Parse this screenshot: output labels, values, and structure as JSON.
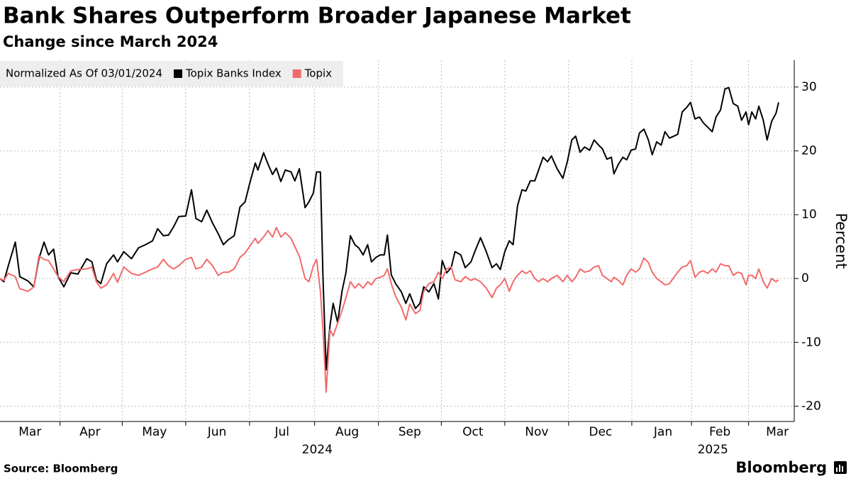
{
  "chart_data": {
    "type": "line",
    "title": "Bank Shares Outperform Broader Japanese Market",
    "subtitle": "Change since March 2024",
    "legend_title": "Normalized As Of 03/01/2024",
    "legend": "top-left",
    "y_label": "Percent",
    "source": "Source: Bloomberg",
    "logo": "Bloomberg",
    "grid": true,
    "xlim": [
      0,
      12.39
    ],
    "xticks": [
      {
        "value": 0.47,
        "label": "Mar"
      },
      {
        "value": 1.41,
        "label": "Apr"
      },
      {
        "value": 2.42,
        "label": "May"
      },
      {
        "value": 3.4,
        "label": "Jun"
      },
      {
        "value": 4.42,
        "label": "Jul"
      },
      {
        "value": 5.44,
        "label": "Aug"
      },
      {
        "value": 6.42,
        "label": "Sep"
      },
      {
        "value": 7.41,
        "label": "Oct"
      },
      {
        "value": 8.41,
        "label": "Nov"
      },
      {
        "value": 9.41,
        "label": "Dec"
      },
      {
        "value": 10.39,
        "label": "Jan"
      },
      {
        "value": 11.28,
        "label": "Feb"
      },
      {
        "value": 12.18,
        "label": "Mar"
      }
    ],
    "x_year_labels": [
      {
        "value": 4.97,
        "label": "2024"
      },
      {
        "value": 11.17,
        "label": "2025"
      }
    ],
    "ylim": [
      -22.4,
      34.2
    ],
    "yticks": [
      -20,
      -10,
      0,
      10,
      20,
      30
    ],
    "x": [
      0,
      0.06,
      0.13,
      0.24,
      0.31,
      0.44,
      0.53,
      0.61,
      0.69,
      0.76,
      0.84,
      0.91,
      1,
      1.11,
      1.22,
      1.36,
      1.44,
      1.51,
      1.58,
      1.67,
      1.78,
      1.84,
      1.94,
      2.06,
      2.17,
      2.28,
      2.39,
      2.47,
      2.56,
      2.64,
      2.72,
      2.8,
      2.91,
      3,
      3.07,
      3.16,
      3.24,
      3.33,
      3.42,
      3.5,
      3.58,
      3.67,
      3.76,
      3.84,
      3.91,
      4,
      4.04,
      4.13,
      4.2,
      4.27,
      4.33,
      4.4,
      4.47,
      4.56,
      4.62,
      4.69,
      4.78,
      4.84,
      4.91,
      4.96,
      5.02,
      5.06,
      5.11,
      5.17,
      5.22,
      5.29,
      5.36,
      5.42,
      5.49,
      5.56,
      5.62,
      5.69,
      5.76,
      5.82,
      5.89,
      5.96,
      6.02,
      6.07,
      6.13,
      6.2,
      6.29,
      6.36,
      6.42,
      6.51,
      6.58,
      6.64,
      6.72,
      6.8,
      6.87,
      6.93,
      7,
      7.07,
      7.13,
      7.22,
      7.29,
      7.38,
      7.44,
      7.53,
      7.62,
      7.71,
      7.78,
      7.84,
      7.91,
      7.98,
      8.04,
      8.11,
      8.18,
      8.24,
      8.31,
      8.38,
      8.44,
      8.51,
      8.58,
      8.64,
      8.73,
      8.82,
      8.89,
      8.96,
      9.02,
      9.09,
      9.16,
      9.24,
      9.31,
      9.38,
      9.44,
      9.51,
      9.58,
      9.62,
      9.69,
      9.76,
      9.82,
      9.89,
      9.96,
      10.02,
      10.09,
      10.16,
      10.22,
      10.29,
      10.36,
      10.42,
      10.49,
      10.56,
      10.62,
      10.69,
      10.76,
      10.82,
      10.89,
      10.96,
      11.02,
      11.09,
      11.16,
      11.22,
      11.29,
      11.36,
      11.42,
      11.49,
      11.56,
      11.62,
      11.69,
      11.73,
      11.78,
      11.84,
      11.89,
      11.96,
      12.02,
      12.09,
      12.16,
      12.2
    ],
    "series": [
      {
        "name": "Topix Banks Index",
        "color": "#000000",
        "values": [
          0,
          -0.5,
          2,
          5.7,
          0.3,
          -0.4,
          -1.3,
          3.1,
          5.7,
          3.7,
          4.6,
          0.3,
          -1.3,
          0.9,
          0.7,
          3.1,
          2.6,
          -0.2,
          -0.8,
          2.3,
          3.7,
          2.6,
          4.2,
          3.1,
          4.8,
          5.3,
          5.9,
          7.8,
          6.7,
          6.8,
          8.1,
          9.7,
          9.8,
          13.9,
          9.4,
          8.9,
          10.7,
          8.7,
          7,
          5.3,
          6.1,
          6.7,
          11.2,
          12,
          14.8,
          18.1,
          17,
          19.7,
          17.9,
          16.3,
          17.3,
          15.2,
          17,
          16.7,
          15.3,
          17.2,
          11.1,
          12,
          13.4,
          16.7,
          16.7,
          0.3,
          -14.3,
          -7.4,
          -3.9,
          -6.9,
          -1.9,
          0.9,
          6.7,
          5.3,
          4.8,
          3.7,
          5.3,
          2.6,
          3.3,
          3.7,
          3.7,
          6.8,
          0.6,
          -0.8,
          -2.1,
          -3.9,
          -2.4,
          -4.7,
          -3.9,
          -1.3,
          -2.1,
          -0.8,
          -3.2,
          2.8,
          0.9,
          1.7,
          4.2,
          3.7,
          1.7,
          2.6,
          4.2,
          6.4,
          4.2,
          1.7,
          2.3,
          1.4,
          4.2,
          5.9,
          5.3,
          11.4,
          13.9,
          13.7,
          15.3,
          15.3,
          17,
          19,
          18.3,
          19.2,
          17.2,
          15.7,
          18.3,
          21.7,
          22.3,
          19.8,
          20.6,
          20.1,
          21.7,
          20.9,
          20.3,
          18.7,
          19,
          16.4,
          17.9,
          19,
          18.6,
          20.1,
          20.3,
          22.8,
          23.4,
          21.7,
          19.4,
          21.4,
          20.9,
          23,
          22,
          22.3,
          22.6,
          26.1,
          26.8,
          27.6,
          25,
          25.3,
          24.4,
          23.7,
          23,
          25.3,
          26.4,
          29.7,
          29.9,
          27.4,
          27,
          24.8,
          26.1,
          24.1,
          26.1,
          25,
          27,
          24.8,
          21.7,
          24.6,
          25.9,
          27.6
        ]
      },
      {
        "name": "Topix",
        "color": "#f26b6b",
        "values": [
          0,
          -0.3,
          0.8,
          0.3,
          -1.6,
          -2,
          -1.3,
          3.5,
          3,
          2.8,
          1.5,
          0.3,
          -0.5,
          1.2,
          1.4,
          1.5,
          1.8,
          -0.5,
          -1.5,
          -1,
          0.8,
          -0.6,
          1.8,
          0.8,
          0.5,
          1,
          1.5,
          1.8,
          3,
          2,
          1.5,
          2,
          3,
          3.3,
          1.5,
          1.8,
          3,
          2,
          0.5,
          1,
          1,
          1.5,
          3.3,
          4,
          5,
          6.3,
          5.5,
          6.5,
          7.5,
          6.5,
          8,
          6.5,
          7.2,
          6.3,
          5,
          3.5,
          0,
          -0.5,
          2,
          3,
          -2,
          -8,
          -17.8,
          -8,
          -9,
          -7,
          -5,
          -3,
          -0.5,
          -1.5,
          -0.8,
          -1.5,
          -0.5,
          -1,
          0,
          0.2,
          0.5,
          1.5,
          -0.8,
          -2.8,
          -4.5,
          -6.5,
          -4,
          -5.5,
          -5,
          -2,
          -0.8,
          -0.5,
          1,
          0,
          1.5,
          1.8,
          -0.2,
          -0.5,
          0.3,
          -0.3,
          0,
          -0.5,
          -1.5,
          -3,
          -1.5,
          -1,
          0,
          -2,
          -0.5,
          0.5,
          1.2,
          0.8,
          1.2,
          0,
          -0.5,
          0,
          -0.5,
          0,
          0.5,
          -0.5,
          0.5,
          -0.5,
          0.2,
          1.5,
          1,
          1.2,
          1.8,
          2,
          0.5,
          0,
          -0.5,
          0.2,
          -0.3,
          -1,
          0.5,
          1.5,
          1,
          1.5,
          3.2,
          2.5,
          1,
          0,
          -0.5,
          -1,
          -0.8,
          0.2,
          1,
          1.8,
          2,
          2.8,
          0.2,
          1,
          1.2,
          0.8,
          1.5,
          1,
          2.3,
          2,
          2,
          0.5,
          1,
          0.8,
          -1,
          0.5,
          0.5,
          0,
          1.5,
          -0.5,
          -1.5,
          0,
          -0.5,
          -0.2
        ]
      }
    ]
  }
}
